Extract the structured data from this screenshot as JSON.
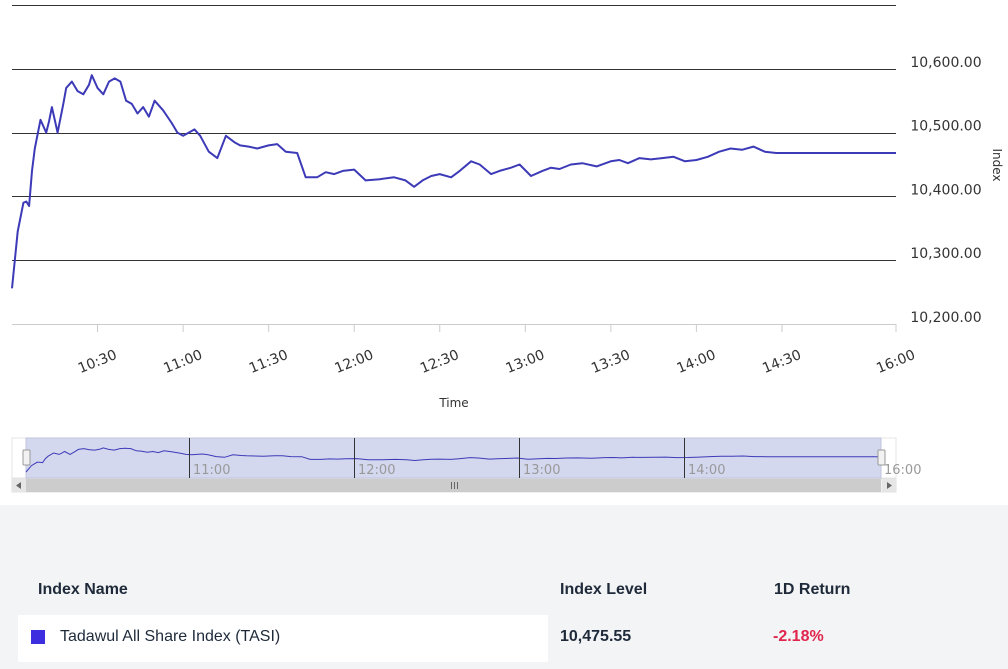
{
  "colors": {
    "series": "#3d3ab8",
    "legend_swatch": "#3d2ee0",
    "return_negative": "#e0254d",
    "navigator_fill": "#d3d8ee",
    "table_bg": "#f3f4f5"
  },
  "chart_data": {
    "type": "line",
    "title": "",
    "xlabel": "Time",
    "ylabel": "Index",
    "x_ticks": [
      "10:30",
      "11:00",
      "11:30",
      "12:00",
      "12:30",
      "13:00",
      "13:30",
      "14:00",
      "14:30",
      "16:00"
    ],
    "y_ticks": [
      "10,200.00",
      "10,300.00",
      "10,400.00",
      "10,500.00",
      "10,600.00"
    ],
    "ylim": [
      10200,
      10700
    ],
    "grid": true,
    "legend": "none",
    "navigator": {
      "x_ticks": [
        "11:00",
        "12:00",
        "13:00",
        "14:00",
        "16:00"
      ],
      "scrollbar": true
    },
    "series": [
      {
        "name": "Tadawul All Share Index (TASI)",
        "x": [
          "10:00",
          "10:02",
          "10:04",
          "10:05",
          "10:06",
          "10:07",
          "10:08",
          "10:10",
          "10:12",
          "10:13",
          "10:14",
          "10:16",
          "10:18",
          "10:19",
          "10:21",
          "10:23",
          "10:25",
          "10:27",
          "10:28",
          "10:30",
          "10:32",
          "10:34",
          "10:36",
          "10:38",
          "10:40",
          "10:42",
          "10:44",
          "10:46",
          "10:48",
          "10:50",
          "10:53",
          "10:56",
          "10:58",
          "11:00",
          "11:02",
          "11:04",
          "11:06",
          "11:09",
          "11:12",
          "11:15",
          "11:18",
          "11:20",
          "11:23",
          "11:26",
          "11:30",
          "11:33",
          "11:36",
          "11:40",
          "11:43",
          "11:47",
          "11:50",
          "11:53",
          "11:56",
          "12:00",
          "12:04",
          "12:09",
          "12:14",
          "12:18",
          "12:21",
          "12:24",
          "12:27",
          "12:30",
          "12:34",
          "12:37",
          "12:41",
          "12:44",
          "12:48",
          "12:51",
          "12:55",
          "12:58",
          "13:02",
          "13:06",
          "13:09",
          "13:12",
          "13:16",
          "13:20",
          "13:25",
          "13:30",
          "13:33",
          "13:36",
          "13:40",
          "13:44",
          "13:48",
          "13:52",
          "13:56",
          "14:00",
          "14:04",
          "14:08",
          "14:12",
          "14:16",
          "14:20",
          "14:24",
          "14:28",
          "14:32",
          "14:36",
          "14:40",
          "14:44",
          "14:48",
          "14:52",
          "14:56",
          "15:00",
          "15:03",
          "15:06",
          "15:09",
          "15:10",
          "16:00"
        ],
        "values": [
          10256,
          10345,
          10390,
          10392,
          10385,
          10440,
          10475,
          10520,
          10500,
          10518,
          10540,
          10500,
          10545,
          10570,
          10580,
          10565,
          10560,
          10575,
          10590,
          10570,
          10560,
          10580,
          10585,
          10580,
          10550,
          10545,
          10530,
          10540,
          10525,
          10550,
          10535,
          10515,
          10500,
          10495,
          10500,
          10505,
          10495,
          10470,
          10460,
          10495,
          10485,
          10480,
          10478,
          10475,
          10480,
          10482,
          10470,
          10468,
          10430,
          10430,
          10438,
          10435,
          10440,
          10442,
          10425,
          10427,
          10430,
          10425,
          10415,
          10425,
          10432,
          10435,
          10430,
          10440,
          10455,
          10450,
          10435,
          10440,
          10445,
          10450,
          10432,
          10440,
          10445,
          10443,
          10450,
          10452,
          10447,
          10455,
          10457,
          10452,
          10460,
          10458,
          10460,
          10462,
          10455,
          10457,
          10462,
          10470,
          10475,
          10473,
          10478,
          10470,
          10468,
          10468,
          10468,
          10468,
          10468,
          10468,
          10468,
          10468,
          10468,
          10468,
          10468,
          10468,
          10468,
          10468
        ]
      }
    ]
  },
  "table": {
    "headers": {
      "name": "Index Name",
      "level": "Index Level",
      "return": "1D Return"
    },
    "rows": [
      {
        "name": "Tadawul All Share Index (TASI)",
        "level": "10,475.55",
        "return": "-2.18%"
      }
    ]
  }
}
